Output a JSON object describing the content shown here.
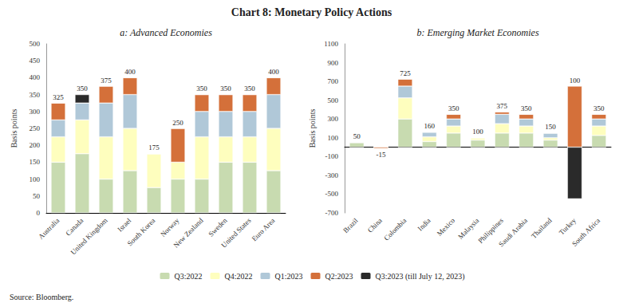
{
  "title": "Chart 8: Monetary Policy Actions",
  "annotations": [
    "Source: Bloomberg."
  ],
  "chart_data": [
    {
      "type": "bar",
      "title": "a: Advanced Economies",
      "ylabel": "Basis points",
      "stacked": true,
      "grid": false,
      "legend": "bottom",
      "categories": [
        "Australia",
        "Canada",
        "United Kingdom",
        "Israel",
        "South Korea",
        "Norway",
        "New Zealand",
        "Sweden",
        "United States",
        "Euro Area"
      ],
      "series": [
        {
          "name": "Q3:2022",
          "color": "#c8dbb0",
          "values": [
            150,
            175,
            100,
            125,
            75,
            100,
            100,
            150,
            150,
            125
          ]
        },
        {
          "name": "Q4:2022",
          "color": "#fefebe",
          "values": [
            75,
            100,
            125,
            125,
            100,
            50,
            125,
            75,
            75,
            125
          ]
        },
        {
          "name": "Q1:2023",
          "color": "#b0c8d8",
          "values": [
            50,
            50,
            100,
            100,
            0,
            0,
            75,
            75,
            75,
            100
          ]
        },
        {
          "name": "Q2:2023",
          "color": "#d4703a",
          "values": [
            50,
            0,
            50,
            50,
            0,
            100,
            50,
            50,
            50,
            50
          ]
        },
        {
          "name": "Q3:2023 (till July 12, 2023)",
          "color": "#2a2a2a",
          "values": [
            0,
            25,
            0,
            0,
            0,
            0,
            0,
            0,
            0,
            0
          ]
        }
      ],
      "totals": [
        325,
        350,
        375,
        400,
        175,
        250,
        350,
        350,
        350,
        400
      ],
      "ylim": [
        0,
        500
      ],
      "yticks": [
        0,
        50,
        100,
        150,
        200,
        250,
        300,
        350,
        400,
        450,
        500
      ]
    },
    {
      "type": "bar",
      "title": "b: Emerging Market Economies",
      "ylabel": "Basis points",
      "stacked": true,
      "grid": false,
      "legend": "bottom",
      "categories": [
        "Brazil",
        "China",
        "Colombia",
        "India",
        "Mexico",
        "Malaysia",
        "Philippines",
        "Saudi Arabia",
        "Thailand",
        "Turkey",
        "South Africa"
      ],
      "series": [
        {
          "name": "Q3:2022",
          "color": "#c8dbb0",
          "values": [
            50,
            0,
            300,
            60,
            150,
            75,
            150,
            150,
            75,
            0,
            125
          ]
        },
        {
          "name": "Q4:2022",
          "color": "#fefebe",
          "values": [
            0,
            0,
            225,
            50,
            75,
            25,
            100,
            75,
            25,
            0,
            100
          ]
        },
        {
          "name": "Q1:2023",
          "color": "#b0c8d8",
          "values": [
            0,
            0,
            125,
            50,
            75,
            0,
            100,
            75,
            50,
            0,
            75
          ]
        },
        {
          "name": "Q2:2023",
          "color": "#d4703a",
          "values": [
            0,
            -15,
            75,
            0,
            50,
            0,
            25,
            50,
            0,
            650,
            50
          ]
        },
        {
          "name": "Q3:2023 (till July 12, 2023)",
          "color": "#2a2a2a",
          "values": [
            0,
            0,
            0,
            0,
            0,
            0,
            0,
            0,
            0,
            -550,
            0
          ]
        }
      ],
      "totals": [
        50,
        -15,
        725,
        160,
        350,
        100,
        375,
        350,
        150,
        100,
        350
      ],
      "ylim": [
        -700,
        1100
      ],
      "yticks": [
        -700,
        -500,
        -300,
        -100,
        100,
        300,
        500,
        700,
        900,
        1100
      ]
    }
  ]
}
